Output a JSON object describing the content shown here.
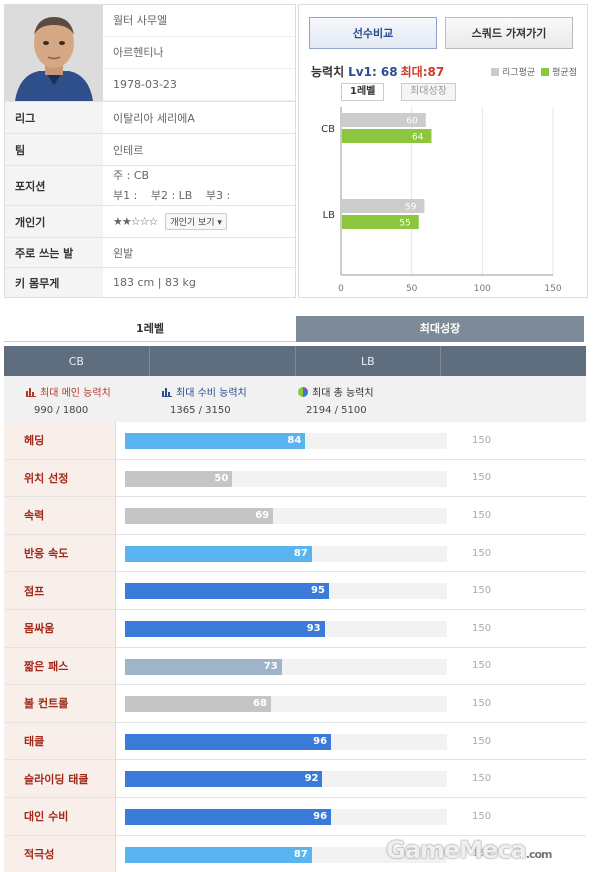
{
  "player": {
    "name": "월터 사무엘",
    "nation": "아르헨티나",
    "birth": "1978-03-23",
    "league_label": "리그",
    "league": "이탈리아 세리에A",
    "team_label": "팀",
    "team": "인테르",
    "position_label": "포지션",
    "position_main": "주 : CB",
    "position_sub1": "부1 :",
    "position_sub2": "부2 : LB",
    "position_sub3": "부3 :",
    "skill_label": "개인기",
    "skill_stars": "★★☆☆☆",
    "skill_button": "개인기 보기 ▾",
    "foot_label": "주로 쓰는 발",
    "foot": "왼발",
    "body_label": "키 몸무게",
    "body": "183 cm  |  83 kg"
  },
  "buttons": {
    "compare": "선수비교",
    "squad": "스쿼드 가져가기"
  },
  "ability": {
    "label": "능력치",
    "lv": "Lv1: 68",
    "max": "최대:87",
    "legend_league": "리그평균",
    "legend_avg": "평균점",
    "legend_league_color": "#cccccc",
    "legend_avg_color": "#8cc63f",
    "tab_level": "1레벨",
    "tab_max": "최대성장"
  },
  "chart_data": {
    "type": "bar",
    "orientation": "horizontal",
    "categories": [
      "CB",
      "LB"
    ],
    "series": [
      {
        "name": "리그평균",
        "values": [
          60,
          59
        ],
        "color": "#cccccc"
      },
      {
        "name": "평균점",
        "values": [
          64,
          55
        ],
        "color": "#8cc63f"
      }
    ],
    "xlim": [
      0,
      150
    ],
    "xticks": [
      0,
      50,
      100,
      150
    ],
    "grid": true
  },
  "tabs": {
    "level": "1레벨",
    "max_growth": "최대성장"
  },
  "positions": [
    "CB",
    "",
    "LB",
    ""
  ],
  "summary": {
    "main_label": "최대 메인 능력치",
    "main_value": "990 / 1800",
    "def_label": "최대 수비 능력치",
    "def_value": "1365 / 3150",
    "total_label": "최대 총 능력치",
    "total_value": "2194 / 5100"
  },
  "stats_max": 150,
  "stats": [
    {
      "name": "헤딩",
      "value": 84,
      "max_label": "150",
      "color": "#5ab4f0"
    },
    {
      "name": "위치 선정",
      "value": 50,
      "max_label": "150",
      "color": "#c5c5c5"
    },
    {
      "name": "속력",
      "value": 69,
      "max_label": "150",
      "color": "#c5c5c5"
    },
    {
      "name": "반응 속도",
      "value": 87,
      "max_label": "150",
      "color": "#5ab4f0"
    },
    {
      "name": "점프",
      "value": 95,
      "max_label": "150",
      "color": "#3a7ad8"
    },
    {
      "name": "몸싸움",
      "value": 93,
      "max_label": "150",
      "color": "#3a7ad8"
    },
    {
      "name": "짧은 패스",
      "value": 73,
      "max_label": "150",
      "color": "#9eb4c8"
    },
    {
      "name": "볼 컨트롤",
      "value": 68,
      "max_label": "150",
      "color": "#c5c5c5"
    },
    {
      "name": "태클",
      "value": 96,
      "max_label": "150",
      "color": "#3a7ad8"
    },
    {
      "name": "슬라이딩 태클",
      "value": 92,
      "max_label": "150",
      "color": "#3a7ad8"
    },
    {
      "name": "대인 수비",
      "value": 96,
      "max_label": "150",
      "color": "#3a7ad8"
    },
    {
      "name": "적극성",
      "value": 87,
      "max_label": "150",
      "color": "#5ab4f0"
    }
  ],
  "watermark": {
    "brand": "GameMeca",
    "suffix": ".com"
  }
}
